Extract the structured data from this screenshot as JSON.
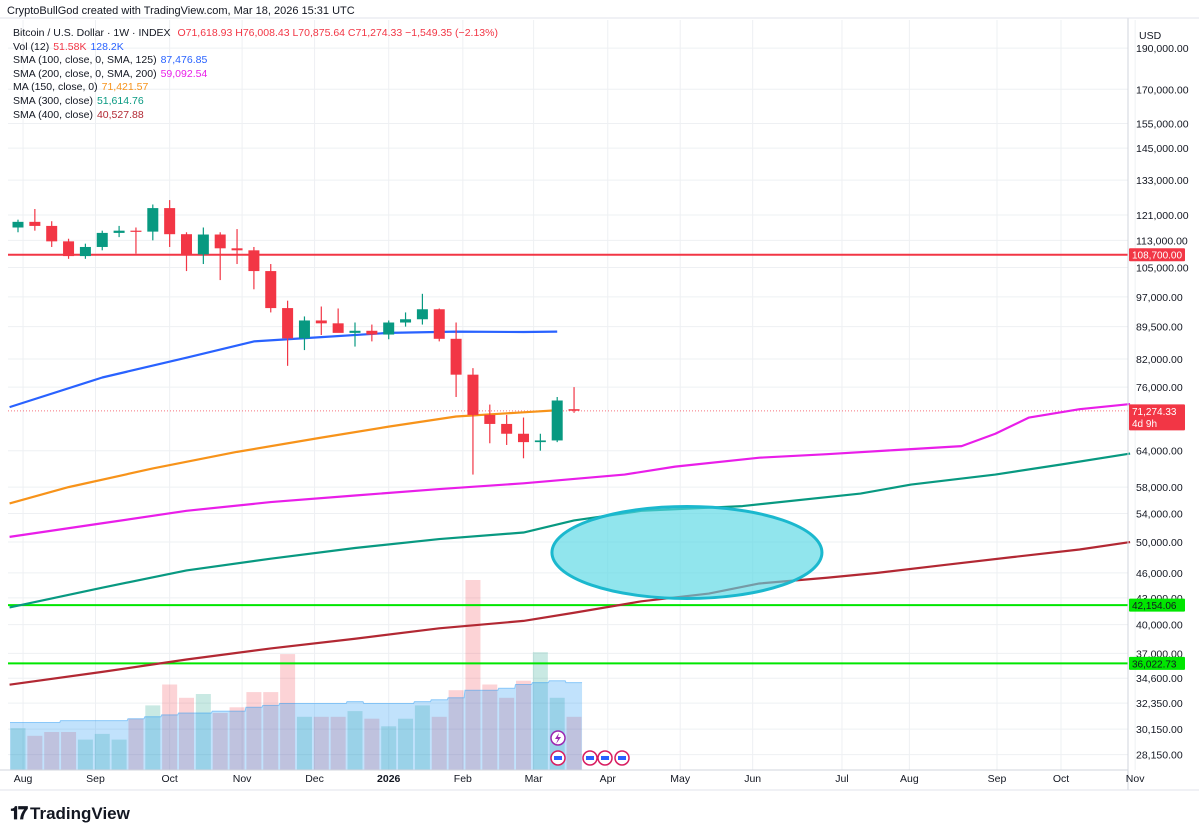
{
  "header": {
    "credit": "CryptoBullGod created with TradingView.com, Mar 18, 2026 15:31 UTC"
  },
  "legend": {
    "symbol": "Bitcoin / U.S. Dollar · 1W · INDEX",
    "ohlc": "O71,618.93 H76,008.43 L70,875.64 C71,274.33 −1,549.35 (−2.13%)",
    "items": [
      {
        "label": "Vol (12)",
        "values": [
          "51.58K",
          "128.2K"
        ],
        "colors": [
          "#f23645",
          "#2962ff"
        ]
      },
      {
        "label": "SMA (100, close, 0, SMA, 125)",
        "values": [
          "87,476.85"
        ],
        "colors": [
          "#2962ff"
        ]
      },
      {
        "label": "SMA (200, close, 0, SMA, 200)",
        "values": [
          "59,092.54"
        ],
        "colors": [
          "#e91ee9"
        ]
      },
      {
        "label": "MA (150, close, 0)",
        "values": [
          "71,421.57"
        ],
        "colors": [
          "#f7931a"
        ]
      },
      {
        "label": "SMA (300, close)",
        "values": [
          "51,614.76"
        ],
        "colors": [
          "#089981"
        ]
      },
      {
        "label": "SMA (400, close)",
        "values": [
          "40,527.88"
        ],
        "colors": [
          "#b22833"
        ]
      }
    ]
  },
  "footer": {
    "brand": "TradingView"
  },
  "chart_data": {
    "type": "candlestick",
    "title": "Bitcoin / U.S. Dollar · 1W · INDEX",
    "currency": "USD",
    "scale": "log",
    "ylim": [
      27000,
      205000
    ],
    "y_ticks": [
      190000,
      170000,
      155000,
      145000,
      133000,
      121000,
      113000,
      105000,
      97000,
      89500,
      82000,
      76000,
      64000,
      58000,
      54000,
      50000,
      46000,
      43000,
      40000,
      37000,
      34600,
      32350,
      30150,
      28150
    ],
    "x_labels": [
      {
        "label": "Aug",
        "week": 0.3
      },
      {
        "label": "Sep",
        "week": 4.6
      },
      {
        "label": "Oct",
        "week": 9.0
      },
      {
        "label": "Nov",
        "week": 13.3
      },
      {
        "label": "Dec",
        "week": 17.6
      },
      {
        "label": "2026",
        "week": 22.0,
        "bold": true
      },
      {
        "label": "Feb",
        "week": 26.4
      },
      {
        "label": "Mar",
        "week": 30.6
      },
      {
        "label": "Apr",
        "week": 35.0
      },
      {
        "label": "May",
        "week": 39.3
      },
      {
        "label": "Jun",
        "week": 43.6
      },
      {
        "label": "Jul",
        "week": 48.9
      },
      {
        "label": "Aug",
        "week": 52.9
      },
      {
        "label": "Sep",
        "week": 58.1
      },
      {
        "label": "Oct",
        "week": 61.9
      },
      {
        "label": "Nov",
        "week": 66.3
      }
    ],
    "candles": [
      [
        117000,
        119500,
        115500,
        118800
      ],
      [
        118800,
        123000,
        116000,
        117500
      ],
      [
        117500,
        119000,
        111000,
        112700
      ],
      [
        112700,
        113500,
        107500,
        108300
      ],
      [
        108300,
        112000,
        107500,
        111000
      ],
      [
        111000,
        116000,
        110000,
        115300
      ],
      [
        115300,
        117500,
        114000,
        116000
      ],
      [
        116000,
        117000,
        109000,
        115700
      ],
      [
        115700,
        124500,
        113000,
        123300
      ],
      [
        123300,
        126000,
        111000,
        114900
      ],
      [
        114900,
        115500,
        104000,
        108800
      ],
      [
        108800,
        117000,
        106000,
        114800
      ],
      [
        114800,
        115500,
        101500,
        110600
      ],
      [
        110600,
        116500,
        106000,
        110000
      ],
      [
        110000,
        111000,
        99000,
        104000
      ],
      [
        104000,
        106000,
        93000,
        94100
      ],
      [
        94100,
        96000,
        80500,
        86700
      ],
      [
        86700,
        92000,
        84000,
        91000
      ],
      [
        91000,
        94500,
        87500,
        90300
      ],
      [
        90300,
        94000,
        88500,
        88000
      ],
      [
        88000,
        90500,
        84800,
        88500
      ],
      [
        88500,
        90000,
        86000,
        87600
      ],
      [
        87600,
        91000,
        86500,
        90500
      ],
      [
        90500,
        93000,
        89500,
        91300
      ],
      [
        91300,
        97800,
        90000,
        93800
      ],
      [
        93800,
        94000,
        86000,
        86600
      ],
      [
        86600,
        90500,
        74000,
        78600
      ],
      [
        78600,
        80000,
        60000,
        70500
      ],
      [
        70500,
        72500,
        65300,
        68800
      ],
      [
        68800,
        70500,
        65000,
        67000
      ],
      [
        67000,
        70000,
        62700,
        65500
      ],
      [
        65500,
        67000,
        64000,
        65800
      ],
      [
        65800,
        74000,
        65500,
        73300
      ],
      [
        71600,
        76000,
        70900,
        71300
      ]
    ],
    "volume_scale": "relative",
    "volumes": [
      0.22,
      0.18,
      0.2,
      0.2,
      0.16,
      0.19,
      0.16,
      0.27,
      0.34,
      0.45,
      0.38,
      0.4,
      0.3,
      0.33,
      0.41,
      0.41,
      0.61,
      0.28,
      0.28,
      0.28,
      0.31,
      0.27,
      0.23,
      0.27,
      0.34,
      0.28,
      0.42,
      1.0,
      0.45,
      0.38,
      0.47,
      0.62,
      0.38,
      0.28
    ],
    "volume_ma": [
      0.25,
      0.25,
      0.25,
      0.26,
      0.26,
      0.26,
      0.26,
      0.27,
      0.28,
      0.29,
      0.3,
      0.3,
      0.31,
      0.31,
      0.33,
      0.34,
      0.35,
      0.35,
      0.35,
      0.35,
      0.36,
      0.35,
      0.35,
      0.35,
      0.36,
      0.37,
      0.38,
      0.42,
      0.42,
      0.43,
      0.45,
      0.46,
      0.47,
      0.46
    ],
    "series": [
      {
        "name": "SMA (100, close, 0, SMA, 125)",
        "color": "#2962ff",
        "points": [
          [
            -0.5,
            72000
          ],
          [
            5,
            78000
          ],
          [
            10,
            82300
          ],
          [
            14,
            86000
          ],
          [
            18,
            87000
          ],
          [
            22,
            88000
          ],
          [
            26,
            88300
          ],
          [
            30,
            88200
          ],
          [
            32,
            88300
          ]
        ]
      },
      {
        "name": "MA (150, close, 0)",
        "color": "#f7931a",
        "points": [
          [
            -0.5,
            55500
          ],
          [
            3,
            58000
          ],
          [
            8,
            61000
          ],
          [
            13,
            63800
          ],
          [
            18,
            66300
          ],
          [
            22,
            68300
          ],
          [
            26,
            70200
          ],
          [
            30,
            71000
          ],
          [
            32,
            71400
          ]
        ]
      },
      {
        "name": "SMA (200, close, 0, SMA, 200)",
        "color": "#e91ee9",
        "points": [
          [
            -0.5,
            50700
          ],
          [
            5,
            52600
          ],
          [
            10,
            54400
          ],
          [
            15,
            55700
          ],
          [
            20,
            56700
          ],
          [
            25,
            57700
          ],
          [
            30,
            58600
          ],
          [
            33,
            59300
          ],
          [
            36,
            60000
          ],
          [
            39,
            61300
          ],
          [
            44,
            62800
          ],
          [
            48,
            63400
          ],
          [
            52,
            64100
          ],
          [
            56,
            64800
          ],
          [
            58,
            67000
          ],
          [
            60,
            70000
          ],
          [
            63,
            71600
          ],
          [
            66,
            72600
          ]
        ]
      },
      {
        "name": "SMA (300, close)",
        "color": "#089981",
        "points": [
          [
            -0.5,
            41900
          ],
          [
            5,
            44200
          ],
          [
            10,
            46300
          ],
          [
            15,
            47800
          ],
          [
            20,
            49200
          ],
          [
            25,
            50400
          ],
          [
            30,
            51300
          ],
          [
            33,
            53000
          ],
          [
            37,
            54400
          ],
          [
            43,
            55100
          ],
          [
            50,
            57000
          ],
          [
            53,
            58400
          ],
          [
            58,
            60000
          ],
          [
            62,
            61700
          ],
          [
            66,
            63500
          ]
        ]
      },
      {
        "name": "SMA (400, close)",
        "color": "#b22833",
        "points": [
          [
            -0.5,
            34000
          ],
          [
            5,
            35200
          ],
          [
            10,
            36400
          ],
          [
            15,
            37500
          ],
          [
            20,
            38500
          ],
          [
            25,
            39600
          ],
          [
            30,
            40400
          ],
          [
            33,
            41300
          ],
          [
            37,
            42600
          ],
          [
            41,
            43500
          ],
          [
            44,
            44700
          ],
          [
            48,
            45400
          ],
          [
            51,
            46000
          ],
          [
            55,
            47000
          ],
          [
            59,
            48000
          ],
          [
            63,
            49000
          ],
          [
            66,
            50000
          ]
        ]
      }
    ],
    "horizontal_lines": [
      {
        "value": 108700,
        "color": "#f23645",
        "label": "108,700.00"
      },
      {
        "value": 42154.06,
        "color": "#00e600",
        "label": "42,154.06"
      },
      {
        "value": 36022.73,
        "color": "#00e600",
        "label": "36,022.73"
      }
    ],
    "last_price": {
      "value": 71274.33,
      "label": "71,274.33",
      "countdown": "4d 9h",
      "color": "#f23645"
    },
    "annotation_ellipse": {
      "center_week": 39.7,
      "center_value": 48600,
      "fill": "#56d7e4",
      "stroke": "#1bb8ce"
    }
  }
}
